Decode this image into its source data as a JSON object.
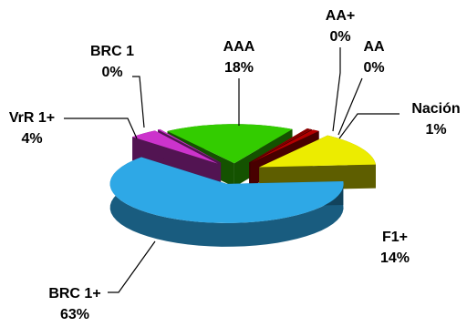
{
  "chart_data": {
    "type": "pie",
    "title": "",
    "categories": [
      "AAA",
      "AA+",
      "AA",
      "Nación",
      "F1+",
      "BRC 1+",
      "VrR 1+",
      "BRC 1"
    ],
    "values": [
      18,
      0,
      0,
      1,
      14,
      63,
      4,
      0
    ],
    "value_labels": [
      "18%",
      "0%",
      "0%",
      "1%",
      "14%",
      "63%",
      "4%",
      "0%"
    ],
    "colors": [
      "#33cc00",
      "#990000",
      "#990000",
      "#b30000",
      "#ecec00",
      "#2ea8e6",
      "#cc33cc",
      "#cc33cc"
    ],
    "style": "3d-exploded",
    "legend": "none",
    "grid": false
  }
}
